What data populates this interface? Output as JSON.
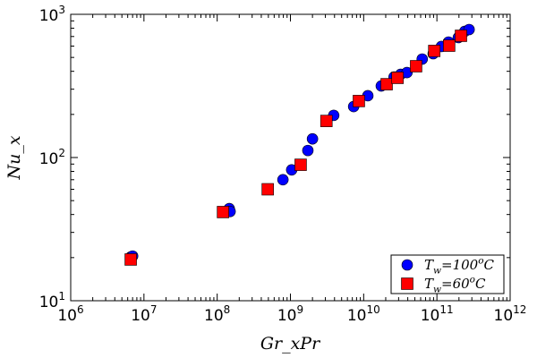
{
  "chart_data": {
    "type": "scatter",
    "xlabel": "Gr_xPr",
    "ylabel": "Nu_x",
    "xscale": "log",
    "yscale": "log",
    "xlim": [
      1000000.0,
      1000000000000.0
    ],
    "ylim": [
      10,
      1000
    ],
    "xticks": [
      6,
      7,
      8,
      9,
      10,
      11,
      12
    ],
    "yticks": [
      1,
      2,
      3
    ],
    "grid": false,
    "legend_position": "bottom-right",
    "series": [
      {
        "name": "T_w=100^oC",
        "marker": "circle",
        "color": "#0000ff",
        "x": [
          6600000.0,
          7000000.0,
          146000000.0,
          150000000.0,
          790000000.0,
          1040000000.0,
          1730000000.0,
          2000000000.0,
          3900000000.0,
          7300000000.0,
          11400000000.0,
          17400000000.0,
          26000000000.0,
          32000000000.0,
          39000000000.0,
          63000000000.0,
          89000000000.0,
          115000000000.0,
          144000000000.0,
          196000000000.0,
          240000000000.0,
          275000000000.0
        ],
        "y": [
          20.2,
          20.5,
          44,
          42,
          70,
          82,
          112,
          135,
          197,
          227,
          270,
          316,
          365,
          381,
          392,
          487,
          531,
          596,
          640,
          688,
          760,
          783
        ]
      },
      {
        "name": "T_w=60^oC",
        "marker": "square",
        "color": "#ff0000",
        "x": [
          6600000.0,
          120000000.0,
          490000000.0,
          1380000000.0,
          3100000000.0,
          8600000000.0,
          20600000000.0,
          29000000000.0,
          52000000000.0,
          92000000000.0,
          147000000000.0,
          213000000000.0
        ],
        "y": [
          19.4,
          41.6,
          60,
          89,
          180,
          248,
          325,
          360,
          434,
          555,
          604,
          708
        ]
      }
    ]
  }
}
